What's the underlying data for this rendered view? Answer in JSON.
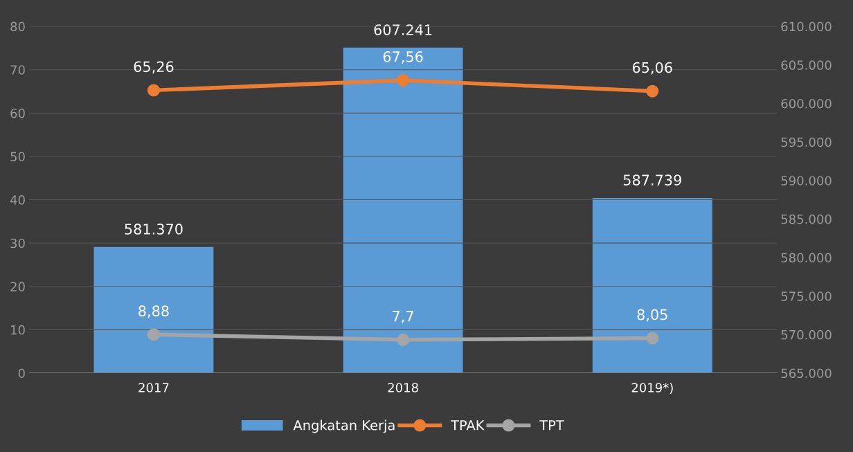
{
  "chart_data": {
    "type": "bar",
    "categories": [
      "2017",
      "2018",
      "2019*)"
    ],
    "series": [
      {
        "name": "Angkatan Kerja",
        "axis": "y2",
        "color": "#5b9bd5",
        "values": [
          581370,
          607241,
          587739
        ],
        "value_labels": [
          "581.370",
          "607.241",
          "587.739"
        ]
      },
      {
        "name": "TPAK",
        "type": "line",
        "axis": "y",
        "color": "#ed7d31",
        "marker": "circle",
        "values": [
          65.26,
          67.56,
          65.06
        ],
        "value_labels": [
          "65,26",
          "67,56",
          "65,06"
        ]
      },
      {
        "name": "TPT",
        "type": "line",
        "axis": "y",
        "color": "#a5a5a5",
        "marker": "circle",
        "values": [
          8.88,
          7.7,
          8.05
        ],
        "value_labels": [
          "8,88",
          "7,7",
          "8,05"
        ]
      }
    ],
    "ylim": [
      0,
      80
    ],
    "yticks": [
      0,
      10,
      20,
      30,
      40,
      50,
      60,
      70,
      80
    ],
    "y2lim": [
      565000,
      610000
    ],
    "y2ticks": [
      {
        "value": 565000,
        "label": "565.000"
      },
      {
        "value": 570000,
        "label": "570.000"
      },
      {
        "value": 575000,
        "label": "575.000"
      },
      {
        "value": 580000,
        "label": "580.000"
      },
      {
        "value": 585000,
        "label": "585.000"
      },
      {
        "value": 590000,
        "label": "590.000"
      },
      {
        "value": 595000,
        "label": "595.000"
      },
      {
        "value": 600000,
        "label": "600.000"
      },
      {
        "value": 605000,
        "label": "605.000"
      },
      {
        "value": 610000,
        "label": "610.000"
      }
    ],
    "grid": "y",
    "legend": "bottom"
  }
}
